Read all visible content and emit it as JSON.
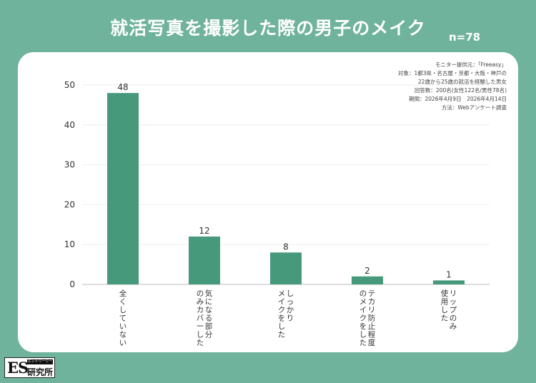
{
  "header": {
    "title": "就活写真を撮影した際の男子のメイク",
    "sample": "n=78"
  },
  "meta": {
    "lines": [
      "モニター提供元：「Freeasy」",
      "対象：1都3県・名古屋・京都・大阪・神戸の",
      "22歳から25歳の就活を経験した男女",
      "回答数：200名(女性122名/男性78名)",
      "期間：2026年4月9日　2026年4月14日",
      "方法：Webアンケート調査"
    ]
  },
  "logo": {
    "mark": "ES",
    "sub": "エントリーシート",
    "name": "研究所"
  },
  "chart_data": {
    "type": "bar",
    "title": "就活写真を撮影した際の男子のメイク",
    "xlabel": "",
    "ylabel": "",
    "categories": [
      [
        "全くしていない"
      ],
      [
        "気になる部分",
        "のみカバーした"
      ],
      [
        "しっかり",
        "メイクをした"
      ],
      [
        "テカリ防止程度",
        "のメイクをした"
      ],
      [
        "リップのみ",
        "使用した"
      ]
    ],
    "values": [
      48,
      12,
      8,
      2,
      1
    ],
    "ylim": [
      0,
      50
    ],
    "yticks": [
      0,
      10,
      20,
      30,
      40,
      50
    ],
    "bar_color": "#46997b",
    "grid": true,
    "legend": "none"
  }
}
